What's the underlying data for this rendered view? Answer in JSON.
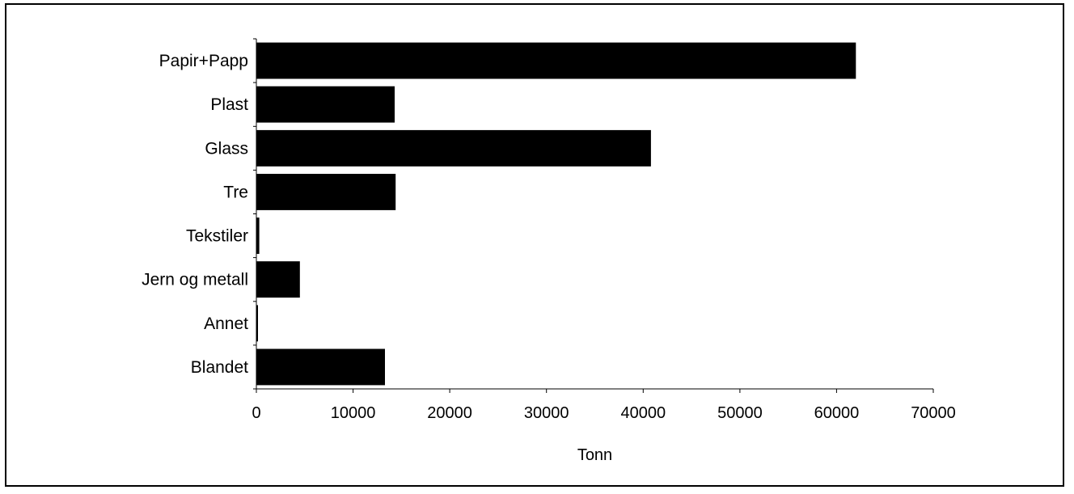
{
  "chart_data": {
    "type": "bar",
    "orientation": "horizontal",
    "categories": [
      "Papir+Papp",
      "Plast",
      "Glass",
      "Tre",
      "Tekstiler",
      "Jern og metall",
      "Annet",
      "Blandet"
    ],
    "values": [
      62000,
      14300,
      40800,
      14400,
      300,
      4500,
      150,
      13300
    ],
    "xlabel": "Tonn",
    "ylabel": "",
    "xlim": [
      0,
      70000
    ],
    "xticks": [
      "0",
      "10000",
      "20000",
      "30000",
      "40000",
      "50000",
      "60000",
      "70000"
    ],
    "grid": false,
    "legend": "none",
    "bar_color": "#000000"
  }
}
